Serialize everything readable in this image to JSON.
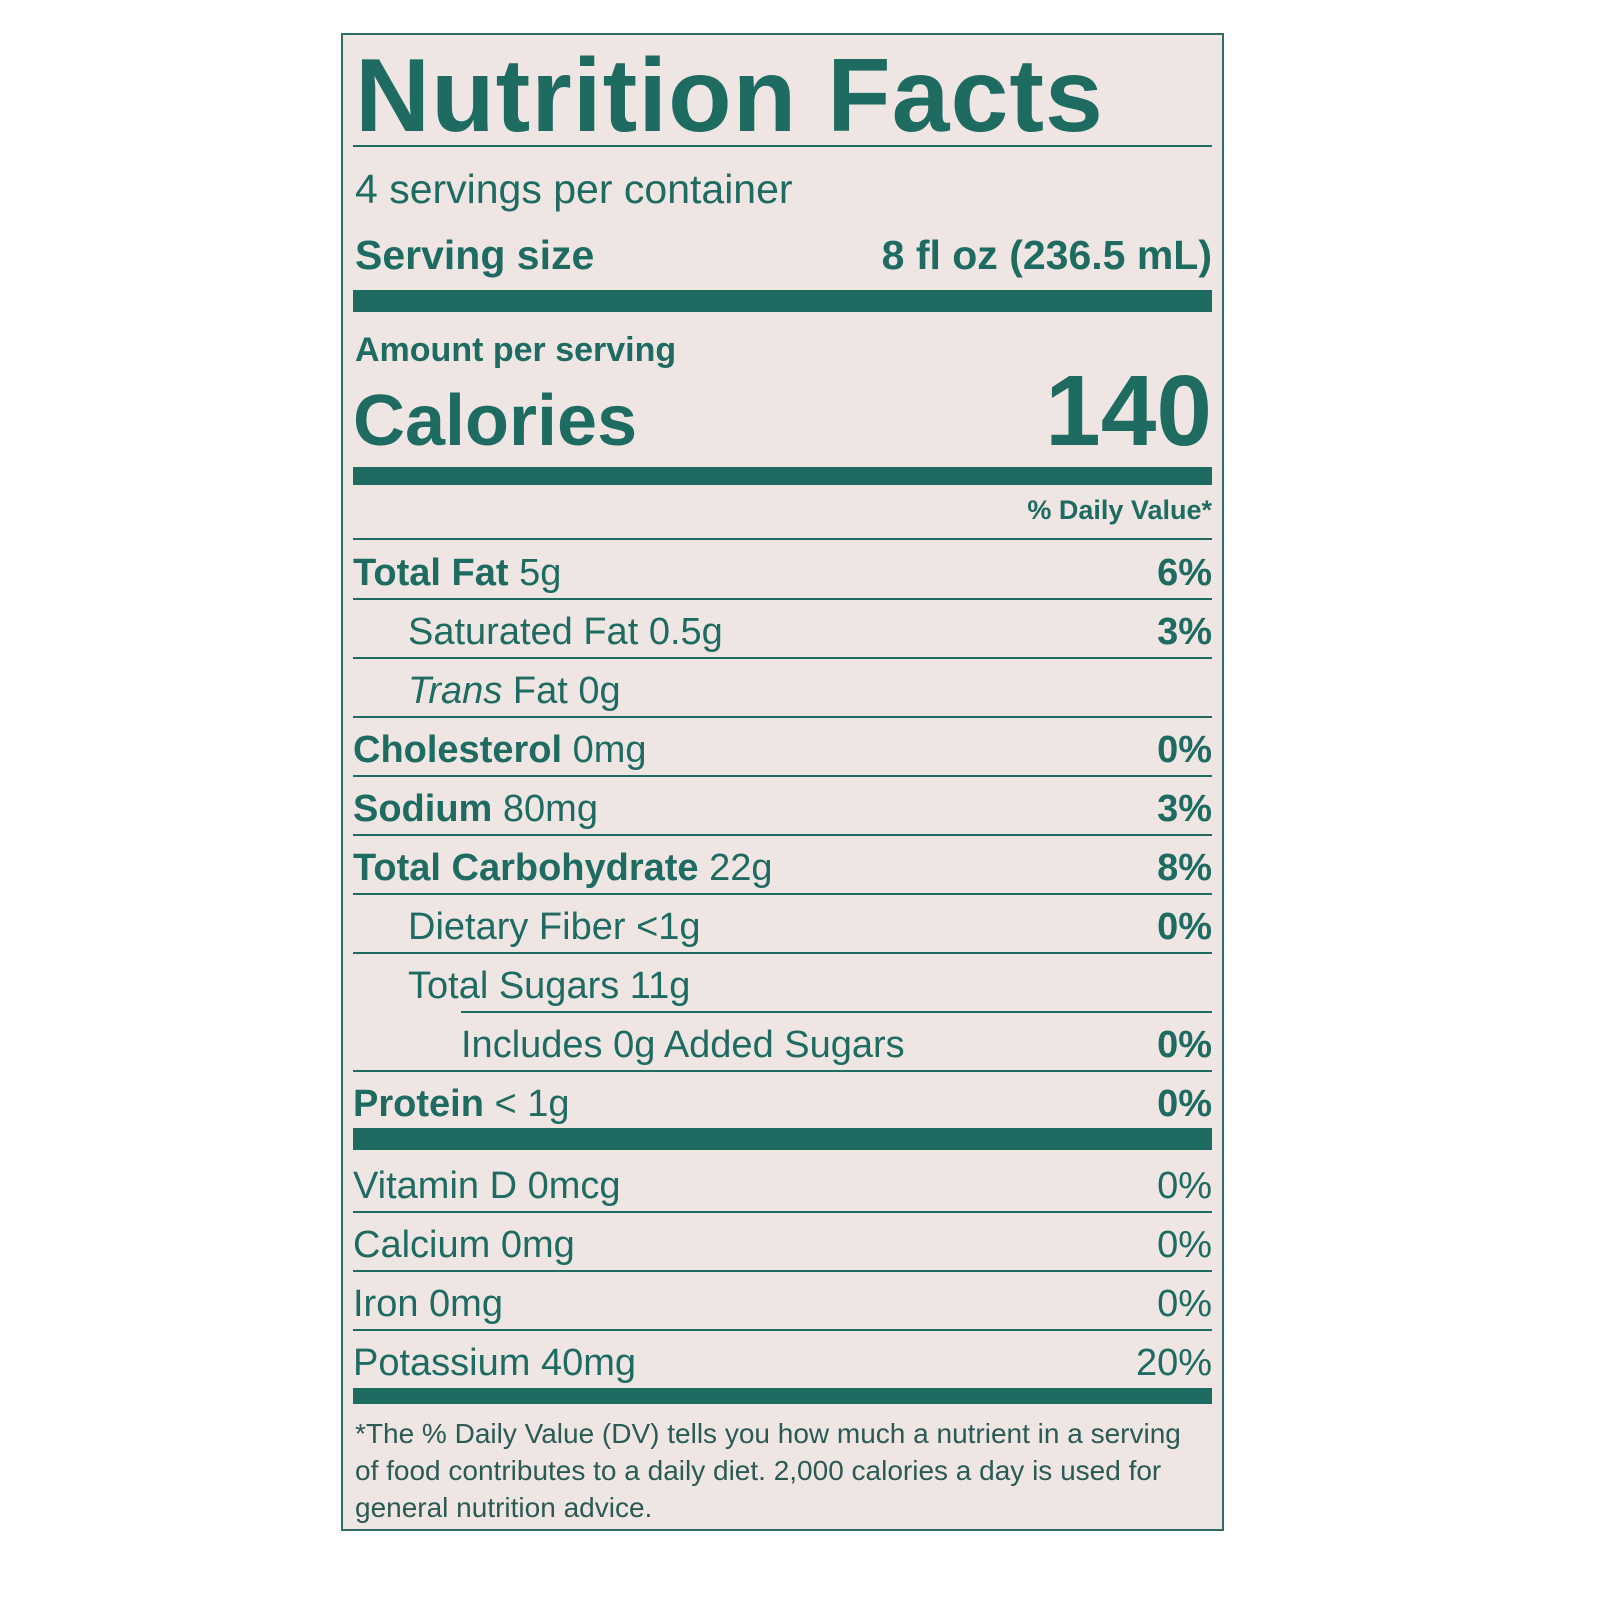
{
  "title": "Nutrition Facts",
  "servings_per_container": "4 servings per container",
  "serving_size": {
    "label": "Serving size",
    "value": "8 fl oz (236.5 mL)"
  },
  "amount_per_serving": "Amount per serving",
  "calories": {
    "label": "Calories",
    "value": "140"
  },
  "daily_value_header": "% Daily Value*",
  "nutrients": [
    {
      "name": "Total Fat",
      "amount": "5g",
      "dv": "6%"
    },
    {
      "name": "Saturated Fat",
      "amount": "0.5g",
      "dv": "3%"
    },
    {
      "name": "Trans",
      "name_rest": "Fat",
      "amount": "0g",
      "dv": ""
    },
    {
      "name": "Cholesterol",
      "amount": "0mg",
      "dv": "0%"
    },
    {
      "name": "Sodium",
      "amount": "80mg",
      "dv": "3%"
    },
    {
      "name": "Total Carbohydrate",
      "amount": "22g",
      "dv": "8%"
    },
    {
      "name": "Dietary Fiber",
      "amount": "<1g",
      "dv": "0%"
    },
    {
      "name": "Total Sugars",
      "amount": "11g",
      "dv": ""
    },
    {
      "name": "Includes 0g Added Sugars",
      "amount": "",
      "dv": "0%"
    },
    {
      "name": "Protein",
      "amount": "< 1g",
      "dv": "0%"
    }
  ],
  "micronutrients": [
    {
      "name": "Vitamin D",
      "amount": "0mcg",
      "dv": "0%"
    },
    {
      "name": "Calcium",
      "amount": "0mg",
      "dv": "0%"
    },
    {
      "name": "Iron",
      "amount": "0mg",
      "dv": "0%"
    },
    {
      "name": "Potassium",
      "amount": "40mg",
      "dv": "20%"
    }
  ],
  "footnote": "*The % Daily Value (DV) tells you how much a nutrient in a serving of food contributes to a daily diet. 2,000 calories a day is used for general nutrition advice.",
  "colors": {
    "ink": "#1e6b62",
    "background": "#efe6e4"
  }
}
